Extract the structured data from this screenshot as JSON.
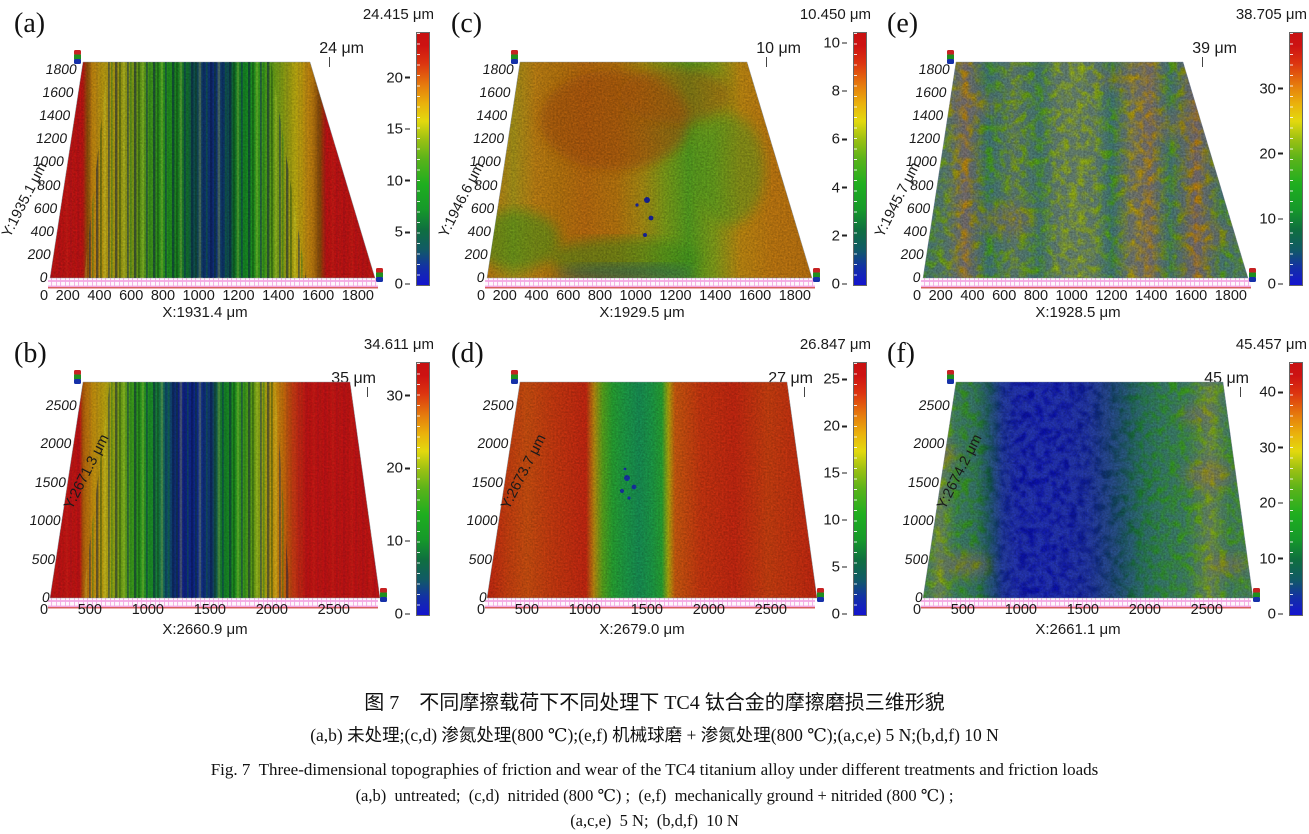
{
  "figure": {
    "unit": "μm",
    "caption": {
      "cn_title": "图 7　不同摩擦载荷下不同处理下 TC4 钛合金的摩擦磨损三维形貌",
      "cn_sub": "(a,b) 未处理;(c,d) 渗氮处理(800 ℃);(e,f) 机械球磨 + 渗氮处理(800 ℃);(a,c,e) 5 N;(b,d,f) 10 N",
      "en_title": "Fig. 7  Three-dimensional topographies of friction and wear of the TC4 titanium alloy under different treatments and friction loads",
      "en_sub1": "(a,b)  untreated;  (c,d)  nitrided (800 ℃) ;  (e,f)  mechanically ground + nitrided (800 ℃) ;",
      "en_sub2": "(a,c,e)  5 N;  (b,d,f)  10 N"
    }
  },
  "colorbar": {
    "gradient": [
      [
        0,
        "#1414cf"
      ],
      [
        7,
        "#1330a6"
      ],
      [
        14,
        "#115a66"
      ],
      [
        22,
        "#0f6f3f"
      ],
      [
        30,
        "#16992a"
      ],
      [
        40,
        "#1fae1f"
      ],
      [
        50,
        "#5ab31a"
      ],
      [
        58,
        "#9ec113"
      ],
      [
        65,
        "#e3d90e"
      ],
      [
        72,
        "#eab10c"
      ],
      [
        80,
        "#e5760d"
      ],
      [
        88,
        "#dc3410"
      ],
      [
        95,
        "#cd1212"
      ],
      [
        100,
        "#c81111"
      ]
    ]
  },
  "panels": [
    {
      "id": "a",
      "label": "(a)",
      "scale_max_label": "24.415 μm",
      "scale_max": 24.415,
      "z_ticks": [
        20,
        15,
        10,
        5,
        0
      ],
      "height_label": "24 μm",
      "x_axis_label": "X:1931.4 μm",
      "y_axis_label": "Y:1935.1 μm",
      "x_ticks": [
        "0",
        "200",
        "400",
        "600",
        "800",
        "1000",
        "1200",
        "1400",
        "1600",
        "1800"
      ],
      "y_ticks": [
        "1800",
        "1600",
        "1400",
        "1200",
        "1000",
        "800",
        "600",
        "400",
        "200",
        "0"
      ]
    },
    {
      "id": "c",
      "label": "(c)",
      "scale_max_label": "10.450 μm",
      "scale_max": 10.45,
      "z_ticks": [
        10,
        8,
        6,
        4,
        2,
        0
      ],
      "height_label": "10 μm",
      "x_axis_label": "X:1929.5 μm",
      "y_axis_label": "Y:1946.6 μm",
      "x_ticks": [
        "0",
        "200",
        "400",
        "600",
        "800",
        "1000",
        "1200",
        "1400",
        "1600",
        "1800"
      ],
      "y_ticks": [
        "1800",
        "1600",
        "1400",
        "1200",
        "1000",
        "800",
        "600",
        "400",
        "200",
        "0"
      ]
    },
    {
      "id": "e",
      "label": "(e)",
      "scale_max_label": "38.705 μm",
      "scale_max": 38.705,
      "z_ticks": [
        30,
        20,
        10,
        0
      ],
      "height_label": "39 μm",
      "x_axis_label": "X:1928.5 μm",
      "y_axis_label": "Y:1945.7 μm",
      "x_ticks": [
        "0",
        "200",
        "400",
        "600",
        "800",
        "1000",
        "1200",
        "1400",
        "1600",
        "1800"
      ],
      "y_ticks": [
        "1800",
        "1600",
        "1400",
        "1200",
        "1000",
        "800",
        "600",
        "400",
        "200",
        "0"
      ]
    },
    {
      "id": "b",
      "label": "(b)",
      "scale_max_label": "34.611 μm",
      "scale_max": 34.611,
      "z_ticks": [
        30,
        20,
        10,
        0
      ],
      "height_label": "35 μm",
      "x_axis_label": "X:2660.9 μm",
      "y_axis_label": "Y:2671.3 μm",
      "x_ticks": [
        "0",
        "500",
        "1000",
        "1500",
        "2000",
        "2500"
      ],
      "y_ticks": [
        "2500",
        "2000",
        "1500",
        "1000",
        "500",
        "0"
      ]
    },
    {
      "id": "d",
      "label": "(d)",
      "scale_max_label": "26.847 μm",
      "scale_max": 26.847,
      "z_ticks": [
        25,
        20,
        15,
        10,
        5,
        0
      ],
      "height_label": "27 μm",
      "x_axis_label": "X:2679.0 μm",
      "y_axis_label": "Y:2673.7 μm",
      "x_ticks": [
        "0",
        "500",
        "1000",
        "1500",
        "2000",
        "2500"
      ],
      "y_ticks": [
        "2500",
        "2000",
        "1500",
        "1000",
        "500",
        "0"
      ]
    },
    {
      "id": "f",
      "label": "(f)",
      "scale_max_label": "45.457 μm",
      "scale_max": 45.457,
      "z_ticks": [
        40,
        30,
        20,
        10,
        0
      ],
      "height_label": "45 μm",
      "x_axis_label": "X:2661.1 μm",
      "y_axis_label": "Y:2674.2 μm",
      "x_ticks": [
        "0",
        "500",
        "1000",
        "1500",
        "2000",
        "2500"
      ],
      "y_ticks": [
        "2500",
        "2000",
        "1500",
        "1000",
        "500",
        "0"
      ]
    }
  ]
}
